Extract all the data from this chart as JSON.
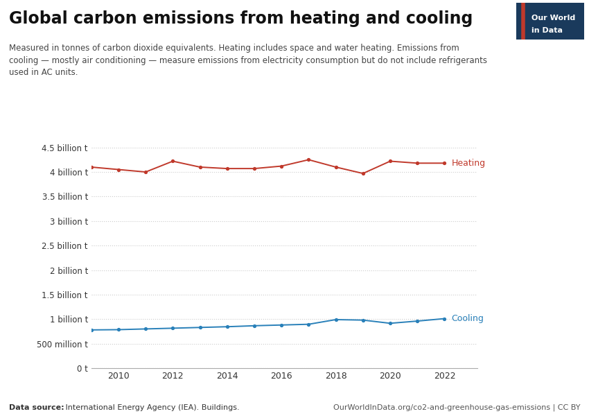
{
  "title": "Global carbon emissions from heating and cooling",
  "subtitle": "Measured in tonnes of carbon dioxide equivalents. Heating includes space and water heating. Emissions from\ncooling — mostly air conditioning — measure emissions from electricity consumption but do not include refrigerants\nused in AC units.",
  "years": [
    2009,
    2010,
    2011,
    2012,
    2013,
    2014,
    2015,
    2016,
    2017,
    2018,
    2019,
    2020,
    2021,
    2022
  ],
  "heating": [
    4100000000.0,
    4050000000.0,
    4000000000.0,
    4220000000.0,
    4100000000.0,
    4070000000.0,
    4070000000.0,
    4120000000.0,
    4250000000.0,
    4100000000.0,
    3970000000.0,
    4220000000.0,
    4180000000.0,
    4180000000.0
  ],
  "cooling": [
    780000000.0,
    785000000.0,
    800000000.0,
    815000000.0,
    830000000.0,
    845000000.0,
    865000000.0,
    880000000.0,
    895000000.0,
    990000000.0,
    980000000.0,
    915000000.0,
    960000000.0,
    1010000000.0
  ],
  "heating_color": "#C0392B",
  "cooling_color": "#2980B9",
  "background_color": "#FFFFFF",
  "grid_color": "#CCCCCC",
  "text_color": "#333333",
  "footer_left_bold": "Data source:",
  "footer_left_rest": " International Energy Agency (IEA). Buildings.",
  "footer_right": "OurWorldInData.org/co2-and-greenhouse-gas-emissions | CC BY",
  "owid_box_bg": "#1a3a5c",
  "owid_box_red": "#C0392B",
  "owid_line1": "Our World",
  "owid_line2": "in Data",
  "ylim": [
    0,
    4750000000.0
  ],
  "ytick_values": [
    0,
    500000000.0,
    1000000000.0,
    1500000000.0,
    2000000000.0,
    2500000000.0,
    3000000000.0,
    3500000000.0,
    4000000000.0,
    4500000000.0
  ],
  "ytick_labels": [
    "0 t",
    "500 million t",
    "1 billion t",
    "1.5 billion t",
    "2 billion t",
    "2.5 billion t",
    "3 billion t",
    "3.5 billion t",
    "4 billion t",
    "4.5 billion t"
  ],
  "xticks": [
    2010,
    2012,
    2014,
    2016,
    2018,
    2020,
    2022
  ],
  "xlim_left": 2009.0,
  "xlim_right": 2023.2
}
